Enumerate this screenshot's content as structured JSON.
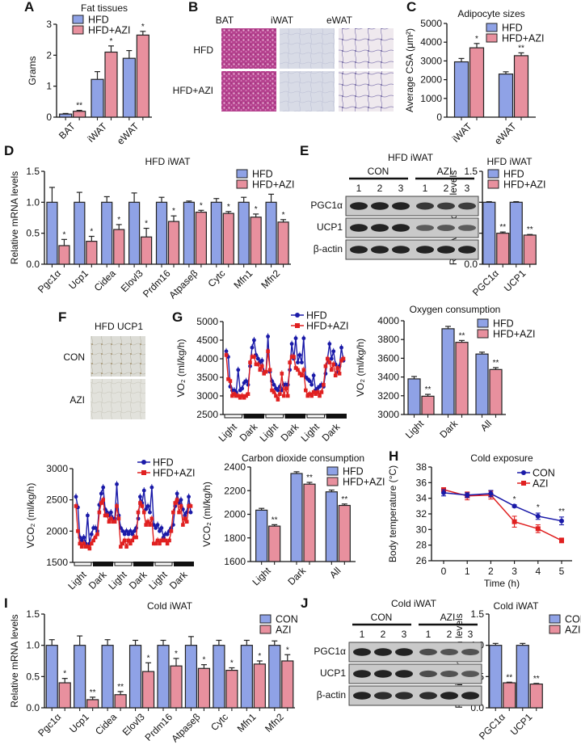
{
  "colors": {
    "hfd_bar": "#8fa2e6",
    "azi_bar": "#e8909e",
    "line_blue": "#1a1aa8",
    "line_red": "#e02020",
    "axis": "#111111"
  },
  "panels": {
    "A": "A",
    "B": "B",
    "C": "C",
    "D": "D",
    "E": "E",
    "F": "F",
    "G": "G",
    "H": "H",
    "I": "I",
    "J": "J"
  },
  "histology_B": {
    "columns": [
      "BAT",
      "iWAT",
      "eWAT"
    ],
    "rows": [
      "HFD",
      "HFD+AZI"
    ]
  },
  "histology_F": {
    "title": "HFD UCP1",
    "rows": [
      "CON",
      "AZI"
    ]
  },
  "western_E": {
    "title": "HFD iWAT",
    "groups": [
      "CON",
      "AZI"
    ],
    "lanes": [
      "1",
      "2",
      "3",
      "1",
      "2",
      "3"
    ],
    "bands": [
      "PGC1α",
      "UCP1",
      "β-actin"
    ]
  },
  "western_J": {
    "title": "Cold iWAT",
    "groups": [
      "CON",
      "AZI"
    ],
    "lanes": [
      "1",
      "2",
      "3",
      "1",
      "2",
      "3"
    ],
    "bands": [
      "PGC1α",
      "UCP1",
      "β-actin"
    ]
  },
  "chart_data": [
    {
      "id": "A",
      "type": "bar",
      "title": "Fat tissues",
      "xlabel": "",
      "ylabel": "Grams",
      "ylim": [
        0,
        3
      ],
      "yticks": [
        "0",
        "1",
        "2",
        "3"
      ],
      "categories": [
        "BAT",
        "iWAT",
        "eWAT"
      ],
      "series": [
        {
          "name": "HFD",
          "values": [
            0.1,
            1.22,
            1.9
          ],
          "errors": [
            0.02,
            0.25,
            0.25
          ]
        },
        {
          "name": "HFD+AZI",
          "values": [
            0.19,
            2.1,
            2.65
          ],
          "errors": [
            0.03,
            0.2,
            0.12
          ]
        }
      ],
      "significance": [
        "**",
        "*",
        "*"
      ],
      "legend": "top-left"
    },
    {
      "id": "C",
      "type": "bar",
      "title": "Adipocyte sizes",
      "xlabel": "",
      "ylabel": "Average CSA (μm²)",
      "ylim": [
        0,
        5000
      ],
      "yticks": [
        "0",
        "1000",
        "2000",
        "3000",
        "4000",
        "5000"
      ],
      "categories": [
        "iWAT",
        "eWAT"
      ],
      "series": [
        {
          "name": "HFD",
          "values": [
            2950,
            2300
          ],
          "errors": [
            180,
            120
          ]
        },
        {
          "name": "HFD+AZI",
          "values": [
            3700,
            3280
          ],
          "errors": [
            230,
            150
          ]
        }
      ],
      "significance": [
        "*",
        "**"
      ],
      "legend": "top-right"
    },
    {
      "id": "D",
      "type": "bar",
      "title": "HFD iWAT",
      "xlabel": "",
      "ylabel": "Relative mRNA levels",
      "ylim": [
        0,
        1.5
      ],
      "yticks": [
        "0.0",
        "0.5",
        "1.0",
        "1.5"
      ],
      "categories": [
        "Pgc1α",
        "Ucp1",
        "Cidea",
        "Elovl3",
        "Prdm16",
        "Atpaseβ",
        "Cytc",
        "Mfn1",
        "Mfn2"
      ],
      "series": [
        {
          "name": "HFD",
          "values": [
            1.0,
            1.0,
            1.0,
            1.0,
            1.0,
            1.0,
            1.0,
            1.0,
            1.0
          ],
          "errors": [
            0.24,
            0.16,
            0.09,
            0.15,
            0.08,
            0.02,
            0.06,
            0.08,
            0.13
          ]
        },
        {
          "name": "HFD+AZI",
          "values": [
            0.3,
            0.37,
            0.56,
            0.44,
            0.69,
            0.84,
            0.82,
            0.76,
            0.68
          ],
          "errors": [
            0.1,
            0.08,
            0.08,
            0.14,
            0.09,
            0.03,
            0.03,
            0.05,
            0.04
          ]
        }
      ],
      "significance": [
        "*",
        "*",
        "*",
        "*",
        "*",
        "*",
        "*",
        "*",
        "*"
      ],
      "legend": "top-right"
    },
    {
      "id": "E",
      "type": "bar",
      "title": "HFD iWAT",
      "xlabel": "",
      "ylabel": "Realtive protein levels",
      "ylim": [
        0,
        1.5
      ],
      "yticks": [
        "0.0",
        "0.5",
        "1.0",
        "1.5"
      ],
      "categories": [
        "PGC1α",
        "UCP1"
      ],
      "series": [
        {
          "name": "HFD",
          "values": [
            1.0,
            1.0
          ],
          "errors": [
            0.01,
            0.01
          ]
        },
        {
          "name": "HFD+AZI",
          "values": [
            0.5,
            0.47
          ],
          "errors": [
            0.02,
            0.01
          ]
        }
      ],
      "significance": [
        "**",
        "**"
      ],
      "legend": "top-right"
    },
    {
      "id": "G-VO2",
      "type": "line",
      "title": "",
      "xlabel": "",
      "ylabel": "VO₂ (ml/kg/h)",
      "ylim": [
        2500,
        5000
      ],
      "yticks": [
        "2500",
        "3000",
        "3500",
        "4000",
        "4500",
        "5000"
      ],
      "x_phases": [
        "Light",
        "Dark",
        "Light",
        "Dark",
        "Light",
        "Dark"
      ],
      "series": [
        {
          "name": "HFD",
          "values": [
            4200,
            4050,
            3250,
            3150,
            3150,
            3100,
            3700,
            3150,
            3200,
            3350,
            3400,
            3300,
            3800,
            4300,
            4500,
            4100,
            4000,
            3900,
            3950,
            3650,
            3650,
            4600,
            3650,
            3400,
            3300,
            3200,
            3150,
            3250,
            3150,
            3300,
            3300,
            3300,
            3700,
            4400,
            4000,
            4550,
            3900,
            4100,
            3900,
            4550,
            3500,
            3450,
            3400,
            3300,
            3550,
            3150,
            3200,
            3250,
            3300,
            3250,
            3600,
            4000,
            4400,
            4000,
            4200,
            3850,
            3650,
            3800,
            4300,
            3950
          ]
        },
        {
          "name": "HFD+AZI",
          "values": [
            4100,
            3450,
            3400,
            3000,
            3050,
            3000,
            3000,
            2950,
            3000,
            2950,
            3000,
            3050,
            3900,
            4050,
            4050,
            3850,
            3850,
            3700,
            3800,
            3600,
            3650,
            4200,
            3700,
            3150,
            3100,
            3000,
            2900,
            3050,
            3600,
            3000,
            3200,
            3000,
            3900,
            4050,
            4050,
            3750,
            3700,
            3600,
            3550,
            3700,
            3150,
            3000,
            3050,
            3000,
            3100,
            3050,
            3100,
            3000,
            3100,
            3300,
            3800,
            4000,
            3900,
            3700,
            3850,
            3550,
            3750,
            3600,
            3950,
            4000
          ]
        }
      ],
      "legend": "top-right"
    },
    {
      "id": "G-O2-bar",
      "type": "bar",
      "title": "Oxygen consumption",
      "xlabel": "",
      "ylabel": "VO₂ (ml/kg/h)",
      "ylim": [
        3000,
        4000
      ],
      "yticks": [
        "3000",
        "3200",
        "3400",
        "3600",
        "3800",
        "4000"
      ],
      "categories": [
        "Light",
        "Dark",
        "All"
      ],
      "series": [
        {
          "name": "HFD",
          "values": [
            3380,
            3915,
            3645
          ],
          "errors": [
            25,
            25,
            20
          ]
        },
        {
          "name": "HFD+AZI",
          "values": [
            3195,
            3770,
            3480
          ],
          "errors": [
            20,
            20,
            20
          ]
        }
      ],
      "significance": [
        "**",
        "**",
        "**"
      ],
      "legend": "top-right"
    },
    {
      "id": "G-VCO2",
      "type": "line",
      "title": "",
      "xlabel": "",
      "ylabel": "VCO₂ (ml/kg/h)",
      "ylim": [
        1500,
        3000
      ],
      "yticks": [
        "1500",
        "2000",
        "2500",
        "3000"
      ],
      "x_phases": [
        "Light",
        "Dark",
        "Light",
        "Dark",
        "Light",
        "Dark"
      ],
      "series": [
        {
          "name": "HFD",
          "values": [
            2550,
            2380,
            1900,
            1850,
            1900,
            1800,
            2250,
            1800,
            1950,
            2050,
            2050,
            2000,
            2420,
            2600,
            2700,
            2350,
            2300,
            2250,
            2300,
            2200,
            2200,
            2750,
            2250,
            2050,
            2000,
            1950,
            2000,
            1950,
            2000,
            1950,
            2000,
            2050,
            2200,
            2550,
            2450,
            2650,
            2350,
            2400,
            2300,
            2700,
            2100,
            2050,
            2100,
            2000,
            2050,
            1900,
            1950,
            1950,
            2000,
            2050,
            2100,
            2400,
            2600,
            2450,
            2500,
            2350,
            2250,
            2300,
            2550,
            2300
          ]
        },
        {
          "name": "HFD+AZI",
          "values": [
            2400,
            2000,
            1800,
            1750,
            1800,
            1750,
            1750,
            1720,
            1800,
            1850,
            1900,
            1950,
            2300,
            2450,
            2500,
            2250,
            2250,
            2150,
            2200,
            2150,
            2150,
            2400,
            2200,
            1750,
            1800,
            1850,
            1750,
            1850,
            1800,
            1850,
            1900,
            1900,
            2300,
            2450,
            2400,
            2300,
            2100,
            2150,
            2100,
            2200,
            1800,
            1800,
            1850,
            1800,
            1850,
            1850,
            1850,
            1800,
            1850,
            2000,
            2300,
            2450,
            2500,
            2300,
            2400,
            2100,
            2200,
            2150,
            2400,
            2400
          ]
        }
      ],
      "legend": "top-right"
    },
    {
      "id": "G-CO2-bar",
      "type": "bar",
      "title": "Carbon dioxide consumption",
      "xlabel": "",
      "ylabel": "VCO₂ (ml/kg/h)",
      "ylim": [
        1600,
        2400
      ],
      "yticks": [
        "1600",
        "1800",
        "2000",
        "2200",
        "2400"
      ],
      "categories": [
        "Light",
        "Dark",
        "All"
      ],
      "series": [
        {
          "name": "HFD",
          "values": [
            2035,
            2345,
            2190
          ],
          "errors": [
            15,
            15,
            15
          ]
        },
        {
          "name": "HFD+AZI",
          "values": [
            1900,
            2255,
            2075
          ],
          "errors": [
            12,
            15,
            12
          ]
        }
      ],
      "significance": [
        "**",
        "**",
        "**"
      ],
      "legend": "top-right"
    },
    {
      "id": "H",
      "type": "line",
      "title": "Cold exposure",
      "xlabel": "Time (h)",
      "ylabel": "Body temperature (°C)",
      "ylim": [
        26,
        38
      ],
      "yticks": [
        "26",
        "28",
        "30",
        "32",
        "34",
        "36",
        "38"
      ],
      "x": [
        0,
        1,
        2,
        3,
        4,
        5
      ],
      "series": [
        {
          "name": "CON",
          "values": [
            34.7,
            34.4,
            34.6,
            33.0,
            31.7,
            31.1
          ],
          "errors": [
            0.4,
            0.3,
            0.4,
            0.15,
            0.4,
            0.5
          ]
        },
        {
          "name": "AZI",
          "values": [
            35.1,
            34.3,
            34.4,
            31.0,
            30.1,
            28.6
          ],
          "errors": [
            0.2,
            0.5,
            0.5,
            0.7,
            0.5,
            0.3
          ]
        }
      ],
      "significance": [
        "",
        "",
        "",
        "*",
        "*",
        "**"
      ],
      "legend": "top-right"
    },
    {
      "id": "I",
      "type": "bar",
      "title": "Cold iWAT",
      "xlabel": "",
      "ylabel": "Relative mRNA levels",
      "ylim": [
        0,
        1.5
      ],
      "yticks": [
        "0.0",
        "0.5",
        "1.0",
        "1.5"
      ],
      "categories": [
        "Pgc1α",
        "Ucp1",
        "Cidea",
        "Elovl3",
        "Prdm16",
        "Atpaseβ",
        "Cytc",
        "Mfn1",
        "Mfn2"
      ],
      "series": [
        {
          "name": "CON",
          "values": [
            1.0,
            1.0,
            1.0,
            1.0,
            1.0,
            1.0,
            1.0,
            1.0,
            1.0
          ],
          "errors": [
            0.09,
            0.15,
            0.09,
            0.08,
            0.08,
            0.14,
            0.08,
            0.08,
            0.07
          ]
        },
        {
          "name": "AZI",
          "values": [
            0.4,
            0.13,
            0.21,
            0.58,
            0.67,
            0.63,
            0.6,
            0.7,
            0.75
          ],
          "errors": [
            0.07,
            0.04,
            0.05,
            0.14,
            0.12,
            0.06,
            0.04,
            0.05,
            0.1
          ]
        }
      ],
      "significance": [
        "*",
        "**",
        "**",
        "*",
        "*",
        "*",
        "*",
        "*",
        "*"
      ],
      "legend": "top-right"
    },
    {
      "id": "J",
      "type": "bar",
      "title": "Cold iWAT",
      "xlabel": "",
      "ylabel": "Realtive protein levels",
      "ylim": [
        0,
        1.5
      ],
      "yticks": [
        "0.0",
        "0.5",
        "1.0",
        "1.5"
      ],
      "categories": [
        "PGC1α",
        "UCP1"
      ],
      "series": [
        {
          "name": "CON",
          "values": [
            1.0,
            1.0
          ],
          "errors": [
            0.03,
            0.03
          ]
        },
        {
          "name": "AZI",
          "values": [
            0.4,
            0.38
          ],
          "errors": [
            0.01,
            0.01
          ]
        }
      ],
      "significance": [
        "**",
        "**"
      ],
      "legend": "top-right"
    }
  ]
}
